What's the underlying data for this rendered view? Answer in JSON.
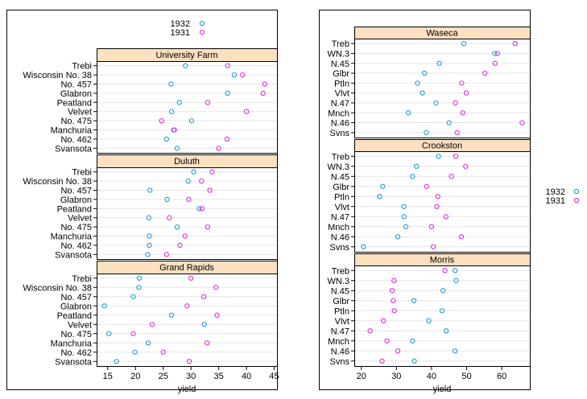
{
  "colors": {
    "y1932": "#1f9bd7",
    "y1931": "#e02ae0",
    "strip_bg": "#fde0c0",
    "guide": "#e6e6e6"
  },
  "chart_data": [
    {
      "type": "scatter",
      "xlabel": "yield",
      "xlim": [
        13,
        45.5
      ],
      "xticks": [
        15,
        20,
        25,
        30,
        35,
        40,
        45
      ],
      "legend": {
        "position": "top",
        "entries": [
          "1932",
          "1931"
        ]
      },
      "categories": [
        "Trebi",
        "Wisconsin No. 38",
        "No. 457",
        "Glabron",
        "Peatland",
        "Velvet",
        "No. 475",
        "Manchuria",
        "No. 462",
        "Svansota"
      ],
      "panels": [
        {
          "site": "University Farm",
          "series": [
            {
              "name": "1932",
              "values": [
                29.0,
                37.8,
                26.4,
                36.6,
                27.9,
                26.5,
                30.1,
                26.9,
                25.6,
                27.5
              ]
            },
            {
              "name": "1931",
              "values": [
                36.6,
                39.3,
                43.3,
                43.0,
                33.0,
                40.0,
                24.7,
                27.0,
                36.5,
                35.0
              ]
            }
          ]
        },
        {
          "site": "Duluth",
          "series": [
            {
              "name": "1932",
              "values": [
                30.5,
                29.5,
                22.6,
                25.7,
                31.5,
                22.4,
                27.5,
                22.5,
                22.5,
                22.2
              ]
            },
            {
              "name": "1931",
              "values": [
                33.8,
                31.9,
                33.4,
                29.6,
                32.0,
                26.1,
                33.0,
                28.9,
                28.0,
                25.6
              ]
            }
          ]
        },
        {
          "site": "Grand Rapids",
          "series": [
            {
              "name": "1932",
              "values": [
                20.7,
                20.6,
                19.6,
                14.4,
                26.5,
                32.4,
                15.2,
                22.3,
                19.9,
                16.6
              ]
            },
            {
              "name": "1931",
              "values": [
                30.0,
                34.5,
                32.3,
                29.3,
                34.7,
                23.0,
                19.6,
                32.9,
                25.0,
                29.7
              ]
            }
          ]
        }
      ]
    },
    {
      "type": "scatter",
      "xlabel": "yield",
      "xlim": [
        18,
        68
      ],
      "xticks": [
        20,
        30,
        40,
        50,
        60
      ],
      "legend": {
        "position": "right",
        "entries": [
          "1932",
          "1931"
        ]
      },
      "categories": [
        "Treb",
        "WN.3",
        "N.45",
        "Glbr",
        "Ptln",
        "Vlvt",
        "N.47",
        "Mnch",
        "N.46",
        "Svns"
      ],
      "panels": [
        {
          "site": "Waseca",
          "series": [
            {
              "name": "1932",
              "values": [
                49.2,
                58.0,
                42.2,
                38.0,
                36.0,
                37.4,
                41.3,
                33.4,
                45.0,
                38.5
              ]
            },
            {
              "name": "1931",
              "values": [
                63.8,
                58.8,
                58.1,
                55.2,
                48.6,
                49.9,
                46.8,
                48.9,
                65.8,
                47.3
              ]
            }
          ]
        },
        {
          "site": "Crookston",
          "series": [
            {
              "name": "1932",
              "values": [
                42.0,
                35.7,
                34.6,
                26.1,
                25.2,
                32.1,
                32.2,
                32.7,
                30.4,
                20.6
              ]
            },
            {
              "name": "1931",
              "values": [
                46.9,
                49.7,
                45.7,
                38.6,
                41.8,
                41.5,
                44.1,
                40.0,
                48.5,
                40.5
              ]
            }
          ]
        },
        {
          "site": "Morris",
          "series": [
            {
              "name": "1932",
              "values": [
                46.7,
                47.0,
                43.3,
                35.0,
                43.0,
                39.2,
                44.2,
                34.6,
                46.7,
                35.1
              ]
            },
            {
              "name": "1931",
              "values": [
                43.8,
                29.3,
                28.8,
                29.1,
                29.4,
                26.3,
                22.5,
                27.3,
                30.4,
                25.9
              ]
            }
          ]
        }
      ]
    }
  ]
}
